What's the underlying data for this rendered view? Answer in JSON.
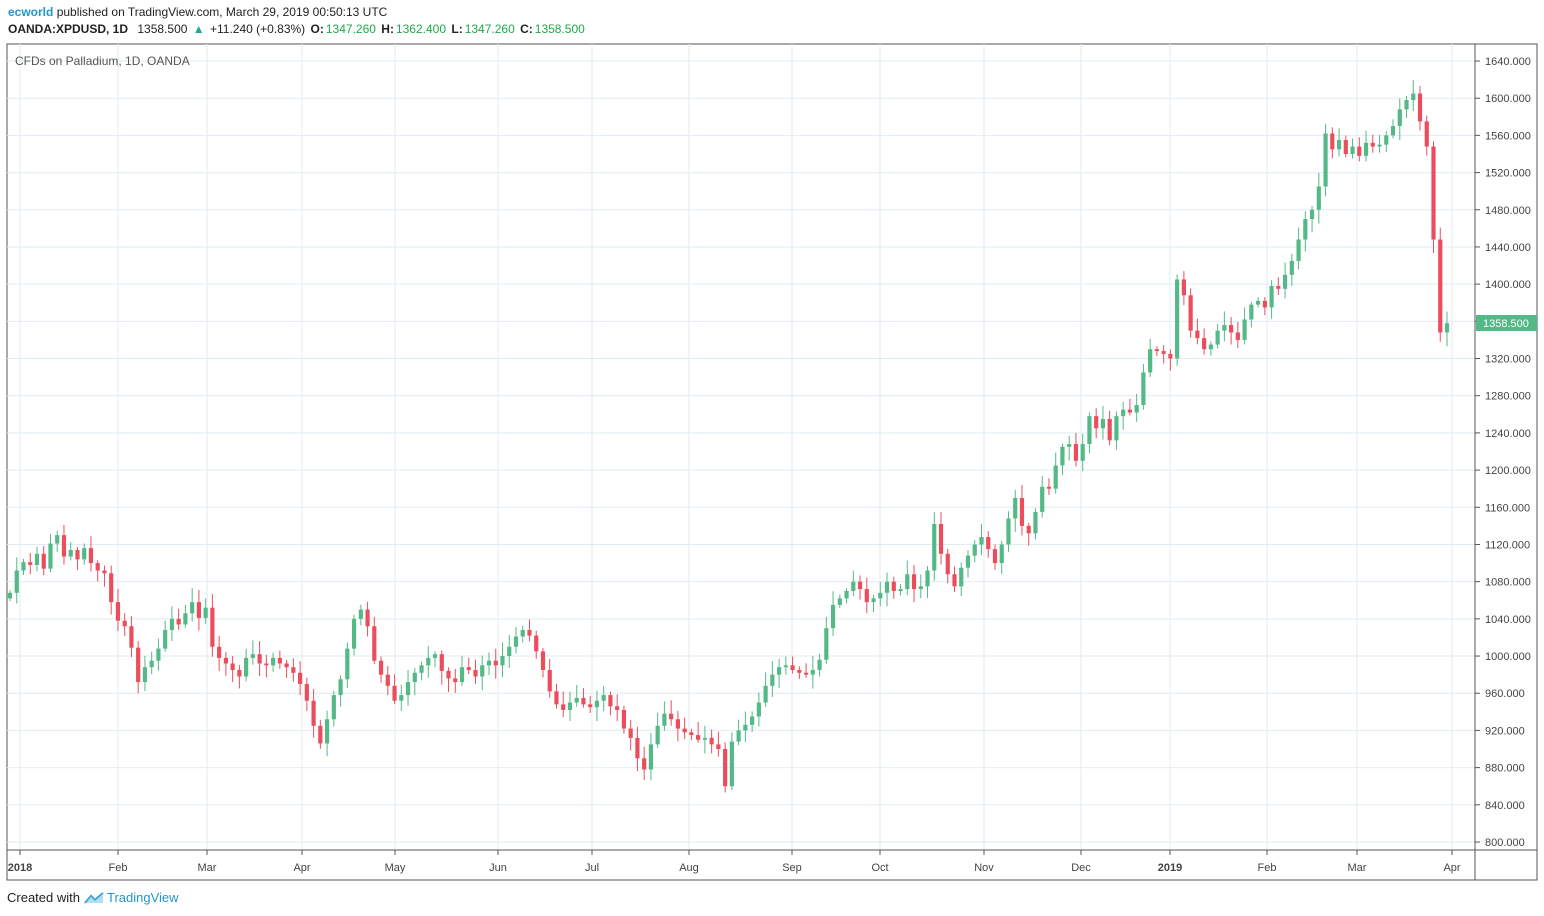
{
  "header": {
    "author": "ecworld",
    "published_text": "published on TradingView.com, March 29, 2019 00:50:13 UTC",
    "symbol": "OANDA:XPDUSD, 1D",
    "last": "1358.500",
    "change_arrow": "▲",
    "change": "+11.240 (+0.83%)",
    "o_label": "O:",
    "o_value": "1347.260",
    "h_label": "H:",
    "h_value": "1362.400",
    "l_label": "L:",
    "l_value": "1347.260",
    "c_label": "C:",
    "c_value": "1358.500"
  },
  "chart_data": {
    "type": "candlestick",
    "title": "CFDs on Palladium, 1D, OANDA",
    "ylim": [
      780,
      1660
    ],
    "y_ticks": [
      "800.000",
      "840.000",
      "880.000",
      "920.000",
      "960.000",
      "1000.000",
      "1040.000",
      "1080.000",
      "1120.000",
      "1160.000",
      "1200.000",
      "1240.000",
      "1280.000",
      "1320.000",
      "1360.000",
      "1400.000",
      "1440.000",
      "1480.000",
      "1520.000",
      "1560.000",
      "1600.000",
      "1640.000"
    ],
    "x_ticks": [
      "2018",
      "Feb",
      "Mar",
      "Apr",
      "May",
      "Jun",
      "Jul",
      "Aug",
      "Sep",
      "Oct",
      "Nov",
      "Dec",
      "2019",
      "Feb",
      "Mar",
      "Apr"
    ],
    "last_price_label": "1358.500",
    "colors": {
      "up": "#53b987",
      "down": "#eb4d5c",
      "grid": "#e1ecf2",
      "axis": "#555555",
      "price_tag": "#53b987"
    },
    "series_closes": [
      1068,
      1092,
      1101,
      1098,
      1110,
      1094,
      1121,
      1130,
      1107,
      1114,
      1104,
      1116,
      1100,
      1092,
      1089,
      1058,
      1038,
      1032,
      1009,
      972,
      988,
      995,
      1008,
      1028,
      1040,
      1034,
      1046,
      1058,
      1041,
      1052,
      1010,
      998,
      992,
      985,
      978,
      998,
      1002,
      992,
      990,
      998,
      992,
      988,
      982,
      970,
      952,
      925,
      906,
      932,
      958,
      975,
      1008,
      1040,
      1050,
      1032,
      995,
      980,
      968,
      952,
      958,
      972,
      982,
      990,
      998,
      1002,
      984,
      976,
      972,
      988,
      985,
      978,
      990,
      995,
      990,
      1000,
      1010,
      1021,
      1028,
      1022,
      1005,
      985,
      962,
      948,
      942,
      950,
      955,
      948,
      945,
      952,
      958,
      946,
      942,
      922,
      912,
      890,
      878,
      905,
      925,
      938,
      932,
      922,
      918,
      915,
      910,
      912,
      905,
      900,
      860,
      908,
      920,
      926,
      935,
      950,
      968,
      980,
      988,
      990,
      985,
      982,
      980,
      985,
      996,
      1030,
      1055,
      1062,
      1070,
      1080,
      1072,
      1058,
      1062,
      1068,
      1080,
      1070,
      1072,
      1088,
      1072,
      1075,
      1092,
      1142,
      1110,
      1088,
      1075,
      1095,
      1108,
      1120,
      1128,
      1115,
      1100,
      1120,
      1148,
      1170,
      1140,
      1132,
      1155,
      1182,
      1180,
      1205,
      1225,
      1228,
      1210,
      1228,
      1258,
      1245,
      1255,
      1232,
      1258,
      1265,
      1262,
      1270,
      1305,
      1330,
      1328,
      1325,
      1320,
      1405,
      1388,
      1350,
      1342,
      1330,
      1335,
      1350,
      1356,
      1348,
      1340,
      1362,
      1378,
      1382,
      1375,
      1398,
      1395,
      1410,
      1425,
      1448,
      1470,
      1480,
      1505,
      1562,
      1545,
      1555,
      1540,
      1548,
      1538,
      1552,
      1548,
      1550,
      1560,
      1570,
      1588,
      1598,
      1605,
      1575,
      1548,
      1448,
      1348,
      1358
    ]
  },
  "footer": {
    "created_with": "Created with",
    "brand": "TradingView"
  }
}
